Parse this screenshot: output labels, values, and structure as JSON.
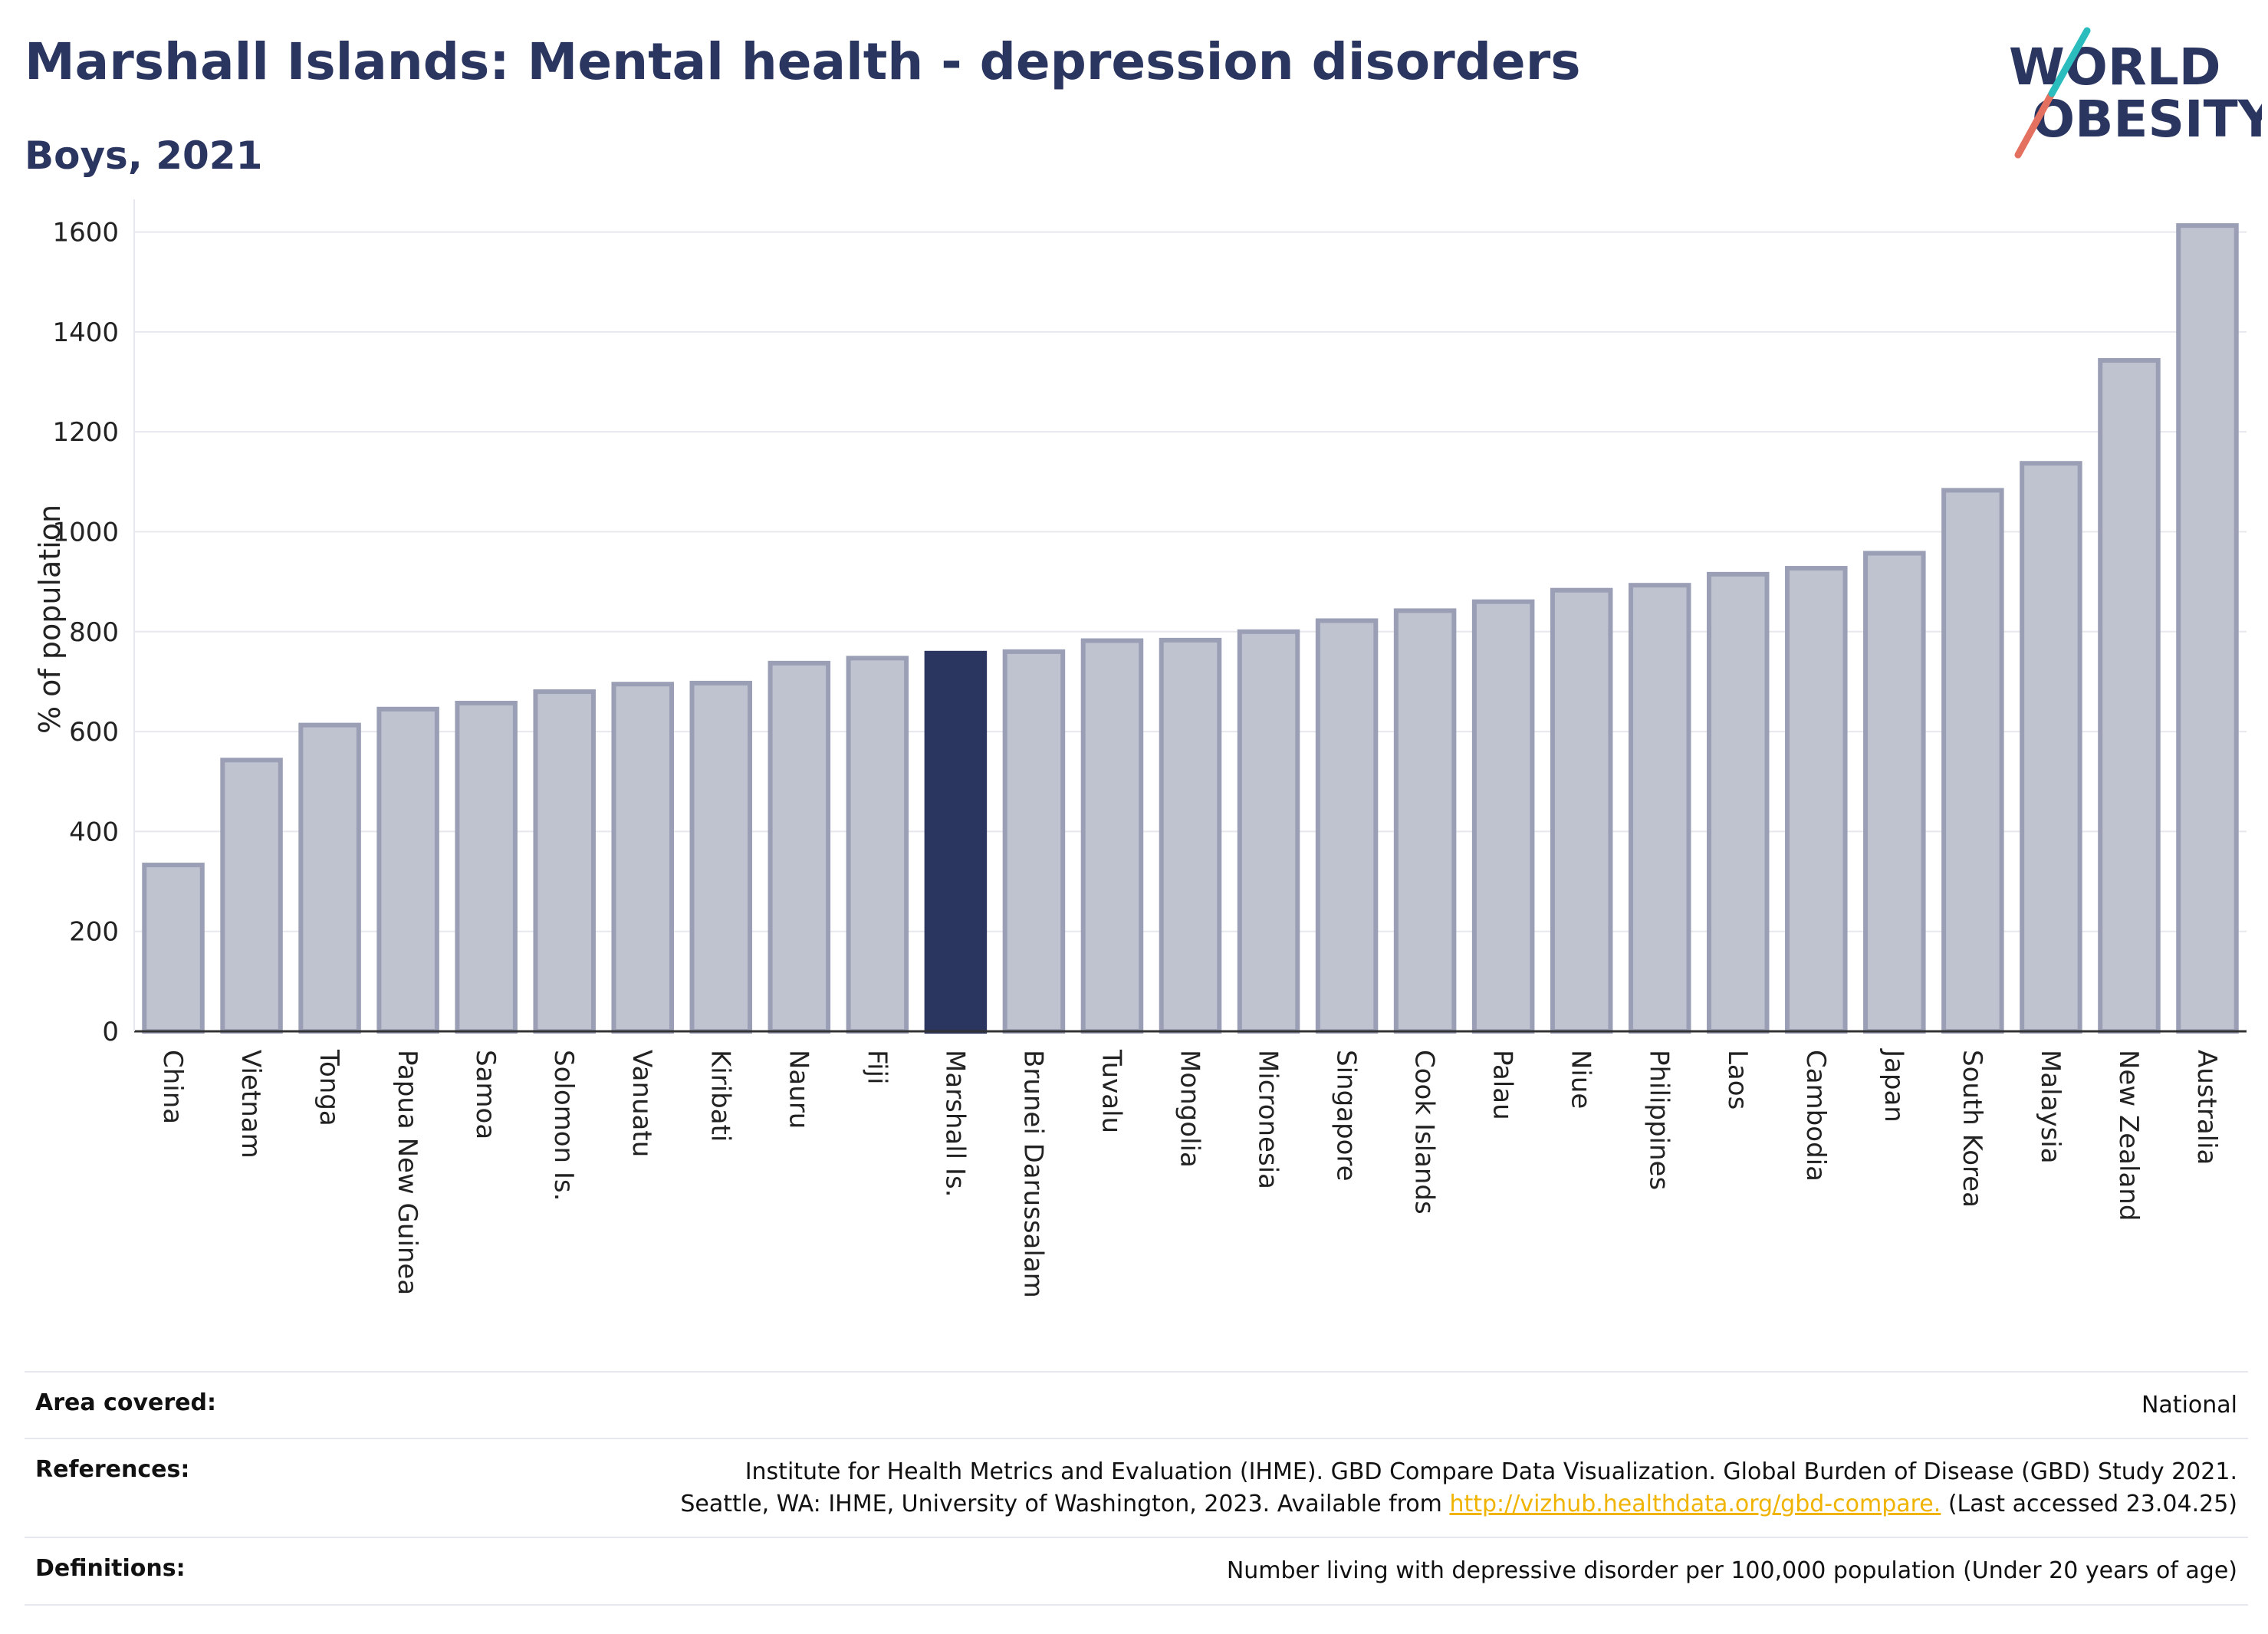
{
  "header": {
    "title": "Marshall Islands: Mental health - depression disorders",
    "subtitle": "Boys, 2021"
  },
  "logo": {
    "line1": "WORLD",
    "line2": "OBESITY"
  },
  "colors": {
    "highlight": "#2a3560",
    "bar_fill": "#bfc2cf",
    "bar_stroke": "#9a9fb5",
    "link": "#f0b400"
  },
  "chart_data": {
    "type": "bar",
    "ylabel": "% of population",
    "ylim": [
      0,
      1650
    ],
    "yticks": [
      0,
      200,
      400,
      600,
      800,
      1000,
      1200,
      1400,
      1600
    ],
    "grid": true,
    "highlight": "Marshall Is.",
    "categories": [
      "China",
      "Vietnam",
      "Tonga",
      "Papua New Guinea",
      "Samoa",
      "Solomon Is.",
      "Vanuatu",
      "Kiribati",
      "Nauru",
      "Fiji",
      "Marshall Is.",
      "Brunei Darussalam",
      "Tuvalu",
      "Mongolia",
      "Micronesia",
      "Singapore",
      "Cook Islands",
      "Palau",
      "Niue",
      "Philippines",
      "Laos",
      "Cambodia",
      "Japan",
      "South Korea",
      "Malaysia",
      "New Zealand",
      "Australia"
    ],
    "values": [
      333,
      543,
      613,
      645,
      657,
      680,
      695,
      697,
      737,
      747,
      757,
      760,
      782,
      783,
      800,
      822,
      842,
      860,
      883,
      893,
      915,
      927,
      957,
      1083,
      1137,
      1343,
      1613
    ]
  },
  "footer": {
    "area": {
      "label": "Area covered:",
      "value": "National"
    },
    "references": {
      "label": "References:",
      "line1": "Institute for Health Metrics and Evaluation (IHME). GBD Compare Data Visualization. Global Burden of Disease (GBD) Study 2021.",
      "line2_pre": "Seattle, WA: IHME, University of Washington, 2023. Available from ",
      "link": "http://vizhub.healthdata.org/gbd-compare.",
      "line2_post": " (Last accessed 23.04.25)"
    },
    "definitions": {
      "label": "Definitions:",
      "value": "Number living with depressive disorder per 100,000 population (Under 20 years of age)"
    }
  }
}
